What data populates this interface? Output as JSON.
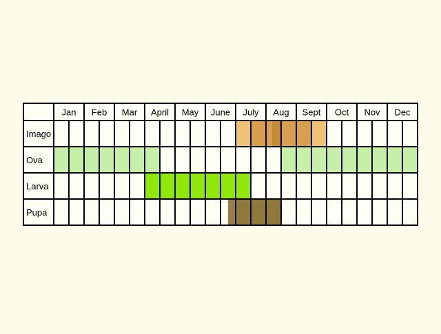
{
  "months": [
    "Jan",
    "Feb",
    "Mar",
    "April",
    "May",
    "June",
    "July",
    "Aug",
    "Sept",
    "Oct",
    "Nov",
    "Dec"
  ],
  "rows": [
    {
      "label": "Imago",
      "segments": [
        {
          "start": 12,
          "end": 13,
          "color": "#f0c276"
        },
        {
          "start": 13,
          "end": 14,
          "color": "#d8a04e"
        },
        {
          "start": 14,
          "end": 14.4,
          "color": "#d8a04e"
        },
        {
          "start": 14.4,
          "end": 15,
          "color": "#c58c36"
        },
        {
          "start": 15,
          "end": 17,
          "color": "#d8a04e"
        },
        {
          "start": 17,
          "end": 18,
          "color": "#f0c276"
        }
      ]
    },
    {
      "label": "Ova",
      "segments": [
        {
          "start": 0,
          "end": 7,
          "color": "#c6f0a8"
        },
        {
          "start": 15,
          "end": 24,
          "color": "#c6f0a8"
        }
      ]
    },
    {
      "label": "Larva",
      "segments": [
        {
          "start": 6,
          "end": 12,
          "color": "#8fe80a"
        },
        {
          "start": 12,
          "end": 13,
          "color": "#8fe80a"
        }
      ]
    },
    {
      "label": "Pupa",
      "segments": [
        {
          "start": 11.5,
          "end": 12,
          "color": "#9a7d46"
        },
        {
          "start": 12,
          "end": 15,
          "color": "#8f7a3c"
        }
      ]
    }
  ],
  "colors": {
    "background": "#fdfbea",
    "cell": "#fefef4",
    "grid": "#000000"
  }
}
